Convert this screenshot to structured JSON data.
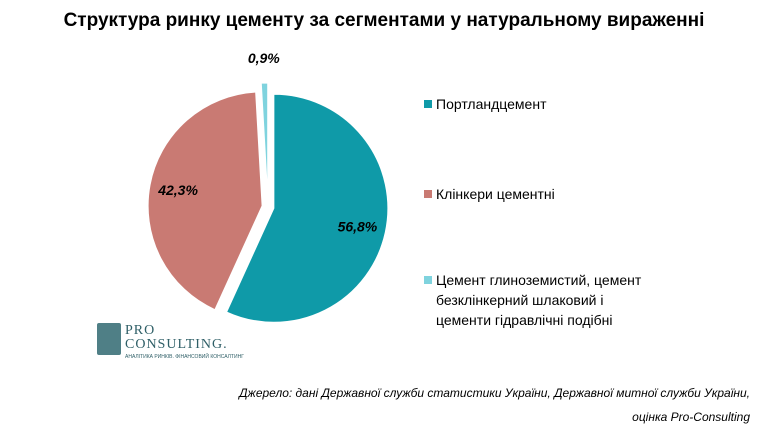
{
  "page": {
    "title": "Структура ринку цементу за сегментами у натуральному вираженні",
    "source_line1": "Джерело: дані Державної служби статистики України, Державної митної служби України,",
    "source_line2": "оцінка Pro-Consulting",
    "logo": {
      "line1": "PRO",
      "line2": "CONSULTING.",
      "subtitle": "АНАЛІТИКА РИНКІВ. ФІНАНСОВИЙ КОНСАЛТИНГ"
    }
  },
  "chart_data": {
    "type": "pie",
    "title": "Структура ринку цементу за сегментами у натуральному вираженні",
    "labels": [
      "Портландцемент",
      "Клінкери цементні",
      "Цемент глиноземистий, цемент безклінкерний шлаковий і цементи гідравлічні подібні"
    ],
    "legend_lines": [
      [
        "Портландцемент"
      ],
      [
        "Клінкери цементні"
      ],
      [
        "Цемент глиноземистий,  цемент",
        "безклінкерний  шлаковий  і",
        "цементи гідравлічні подібні"
      ]
    ],
    "values": [
      56.8,
      42.3,
      0.9
    ],
    "value_labels": [
      "56,8%",
      "42,3%",
      "0,9%"
    ],
    "colors": [
      "#0f9aa8",
      "#c97a73",
      "#7fd3de"
    ],
    "exploded": true,
    "start_angle_deg": 0,
    "direction": "clockwise",
    "legend_position": "right"
  }
}
